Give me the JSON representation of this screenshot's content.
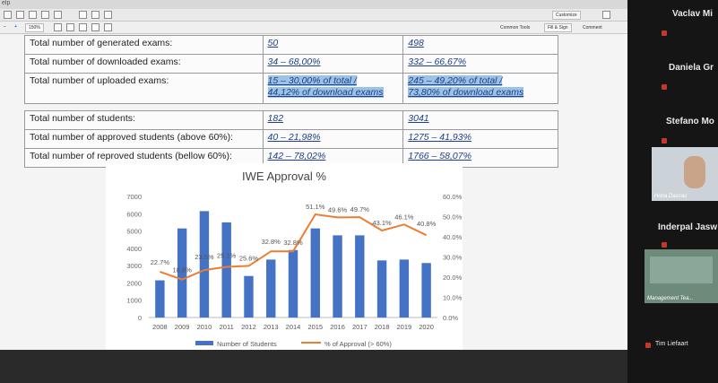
{
  "viewer": {
    "menu_label": "elp",
    "zoom_value": "150%",
    "customize_label": "Customize",
    "common_tools_label": "Common Tools",
    "fill_sign_label": "Fill & Sign",
    "comment_label": "Comment"
  },
  "table": {
    "rows": [
      {
        "label": "Total number of generated exams:",
        "a": "50",
        "b": "498"
      },
      {
        "label": "Total number of downloaded exams:",
        "a": "34 – 68,00%",
        "b": "332 – 66,67%"
      },
      {
        "label": "Total number of uploaded exams:",
        "a": "15 – 30,00% of total /",
        "a2": "44,12% of download exams",
        "b": "245 – 49,20% of total /",
        "b2": "73,80% of download exams"
      },
      {
        "label": "Total number of students:",
        "a": "182",
        "b": "3041"
      },
      {
        "label": "Total number of approved students (above 60%):",
        "a": "40 – 21,98%",
        "b": "1275 – 41,93%"
      },
      {
        "label": "Total number of reproved students (bellow 60%):",
        "a": "142 – 78,02%",
        "b": "1766 – 58,07%"
      }
    ]
  },
  "chart_data": {
    "type": "bar",
    "title": "IWE Approval %",
    "categories": [
      "2008",
      "2009",
      "2010",
      "2011",
      "2012",
      "2013",
      "2014",
      "2015",
      "2016",
      "2017",
      "2018",
      "2019",
      "2020"
    ],
    "y_left_ticks": [
      "0",
      "1000",
      "2000",
      "3000",
      "4000",
      "5000",
      "6000",
      "7000"
    ],
    "y_right_ticks": [
      "0.0%",
      "10.0%",
      "20.0%",
      "30.0%",
      "40.0%",
      "50.0%",
      "60.0%"
    ],
    "ylim_left": [
      0,
      7000
    ],
    "ylim_right": [
      0,
      60
    ],
    "series": [
      {
        "name": "Number of Students",
        "type": "bar",
        "color": "#4472c4",
        "values": [
          2150,
          5150,
          6150,
          5500,
          2400,
          3350,
          3900,
          5150,
          4750,
          4750,
          3300,
          3350,
          3150
        ]
      },
      {
        "name": "% of Approval (> 60%)",
        "type": "line",
        "color": "#ed7d31",
        "values": [
          22.7,
          18.8,
          23.5,
          25.1,
          25.6,
          32.8,
          32.8,
          51.1,
          49.6,
          49.7,
          43.1,
          46.1,
          40.8
        ]
      }
    ],
    "data_labels": [
      "22.7%",
      "18.8%",
      "23.5%",
      "25.1%",
      "25.6%",
      "32.8%",
      "32.8%",
      "51.1%",
      "49.6%",
      "49.7%",
      "43.1%",
      "46.1%",
      "40.8%"
    ],
    "legend": "bottom"
  },
  "participants": [
    {
      "name": "Vaclav Mi"
    },
    {
      "name": "Daniela Gr"
    },
    {
      "name": "Stefano Mo"
    },
    {
      "name": "Horia Dascau",
      "video": true
    },
    {
      "name": "Inderpal Jasw"
    },
    {
      "name": "Management Tea...",
      "video": true
    },
    {
      "name": "Tim Liefaart"
    }
  ]
}
